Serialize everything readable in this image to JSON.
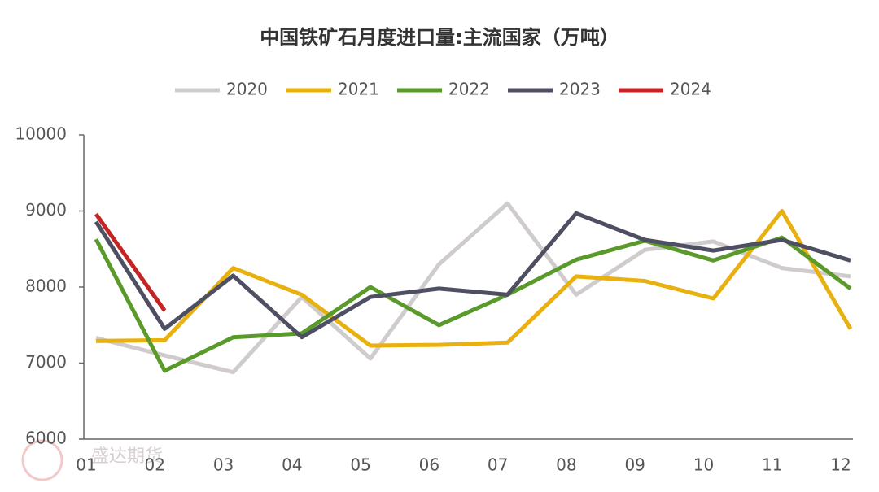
{
  "chart_data": {
    "type": "line",
    "title": "中国铁矿石月度进口量:主流国家（万吨）",
    "categories": [
      "01",
      "02",
      "03",
      "04",
      "05",
      "06",
      "07",
      "08",
      "09",
      "10",
      "11",
      "12"
    ],
    "series": [
      {
        "name": "2020",
        "color": "#d0cbcc",
        "values": [
          7330,
          7100,
          6880,
          7870,
          7060,
          8300,
          9100,
          7900,
          8490,
          8600,
          8250,
          8140
        ]
      },
      {
        "name": "2021",
        "color": "#e8b10f",
        "values": [
          7290,
          7300,
          8250,
          7900,
          7230,
          7240,
          7270,
          8140,
          8080,
          7850,
          9000,
          7450
        ]
      },
      {
        "name": "2022",
        "color": "#5a9a2b",
        "values": [
          8630,
          6900,
          7340,
          7390,
          8000,
          7500,
          7900,
          8360,
          8610,
          8350,
          8650,
          7980
        ]
      },
      {
        "name": "2023",
        "color": "#4f4f63",
        "values": [
          8860,
          7450,
          8150,
          7340,
          7870,
          7980,
          7900,
          8970,
          8620,
          8480,
          8620,
          8350
        ]
      },
      {
        "name": "2024",
        "color": "#c42424",
        "values": [
          8960,
          7690,
          null,
          null,
          null,
          null,
          null,
          null,
          null,
          null,
          null,
          null
        ]
      }
    ],
    "ylim": [
      6000,
      10000
    ],
    "yticks": [
      6000,
      7000,
      8000,
      9000,
      10000
    ],
    "grid": false,
    "legend": "top",
    "watermark": "盛达期货"
  }
}
